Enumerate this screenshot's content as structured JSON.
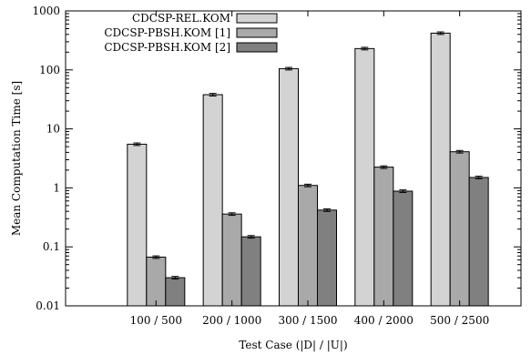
{
  "chart_data": {
    "type": "bar",
    "y_scale": "log",
    "ylim": [
      0.01,
      1000
    ],
    "yticks": [
      "0.01",
      "0.1",
      "1",
      "10",
      "100",
      "1000"
    ],
    "xlabel": "Test Case (|D| / |U|)",
    "ylabel": "Mean Computation Time [s]",
    "categories": [
      "100 / 500",
      "200 / 1000",
      "300 / 1500",
      "400 / 2000",
      "500 / 2500"
    ],
    "legend_position": "top-left",
    "grid": false,
    "error_bars": true,
    "series": [
      {
        "name": "CDCSP-REL.KOM",
        "color": "#d3d3d3",
        "values": [
          5.5,
          38,
          105,
          230,
          420
        ]
      },
      {
        "name": "CDCSP-PBSH.KOM [1]",
        "color": "#a9a9a9",
        "values": [
          0.067,
          0.36,
          1.1,
          2.25,
          4.1
        ]
      },
      {
        "name": "CDCSP-PBSH.KOM [2]",
        "color": "#808080",
        "values": [
          0.03,
          0.148,
          0.42,
          0.88,
          1.5
        ]
      }
    ]
  }
}
